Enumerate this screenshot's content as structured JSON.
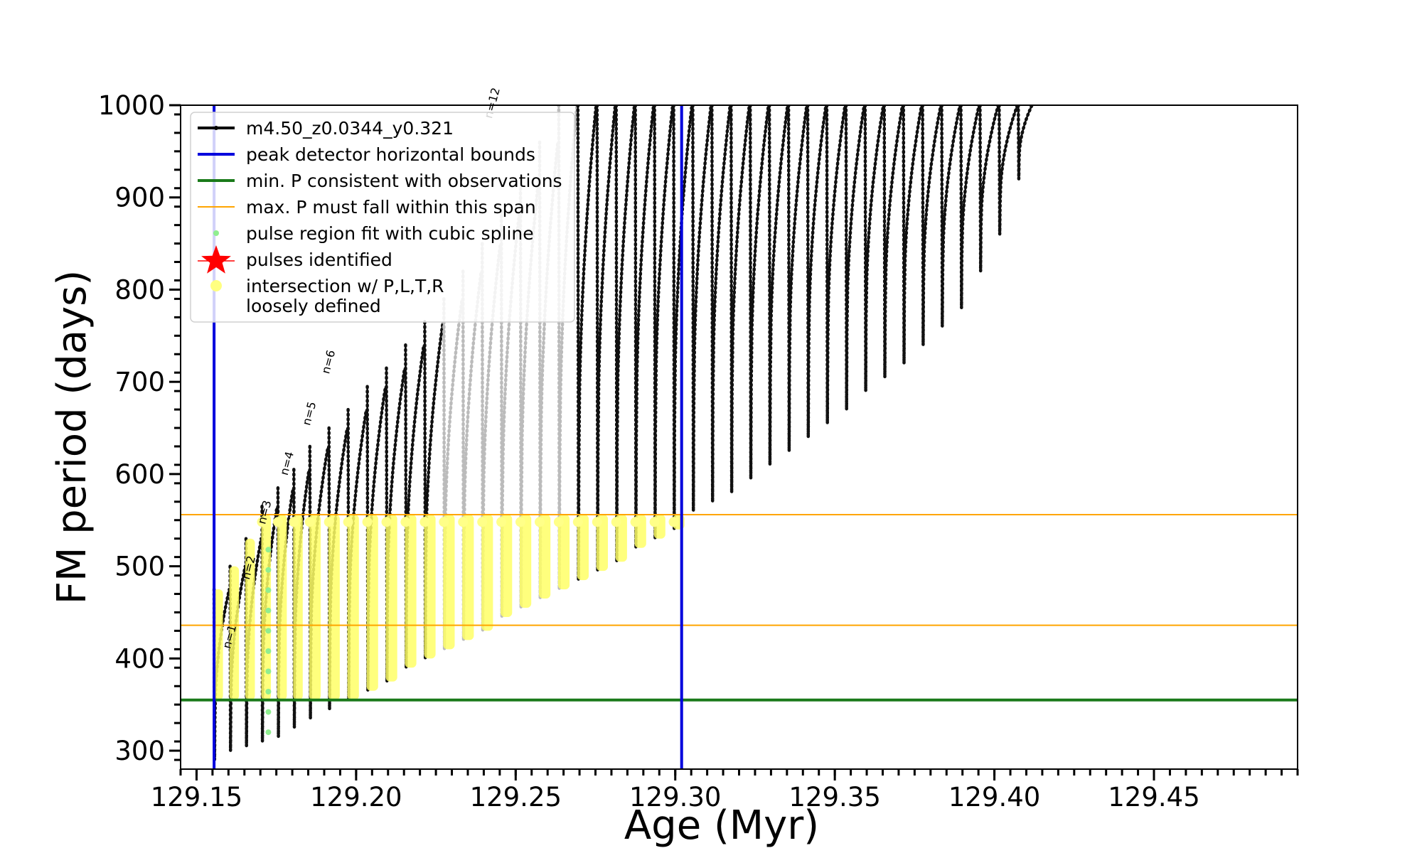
{
  "chart_data": {
    "type": "line",
    "title": "",
    "xlabel": "Age (Myr)",
    "ylabel": "FM period (days)",
    "xlim": [
      129.145,
      129.495
    ],
    "ylim": [
      280,
      1000
    ],
    "x_ticks": [
      129.15,
      129.2,
      129.25,
      129.3,
      129.35,
      129.4,
      129.45
    ],
    "x_tick_labels": [
      "129.15",
      "129.20",
      "129.25",
      "129.30",
      "129.35",
      "129.40",
      "129.45"
    ],
    "y_ticks": [
      300,
      400,
      500,
      600,
      700,
      800,
      900,
      1000
    ],
    "y_tick_labels": [
      "300",
      "400",
      "500",
      "600",
      "700",
      "800",
      "900",
      "1000"
    ],
    "grid": false,
    "legend_position": "top-left",
    "legend": [
      {
        "label": "m4.50_z0.0344_y0.321",
        "style": "line-marker",
        "color": "#000000"
      },
      {
        "label": "peak detector horizontal bounds",
        "style": "line",
        "color": "#0000dd"
      },
      {
        "label": "min. P consistent with observations",
        "style": "line",
        "color": "#1a7a1a"
      },
      {
        "label": "max. P must fall within this span",
        "style": "line",
        "color": "#ffa500"
      },
      {
        "label": "pulse region fit with cubic spline",
        "style": "dot",
        "color": "#90ee90"
      },
      {
        "label": "pulses identified",
        "style": "star",
        "color": "#ff0000"
      },
      {
        "label": "intersection w/ P,L,T,R\nloosely defined",
        "style": "dot",
        "color": "#ffff80"
      }
    ],
    "vertical_lines": [
      {
        "x": 129.1555,
        "color": "#0000dd",
        "role": "peak detector horizontal bounds"
      },
      {
        "x": 129.302,
        "color": "#0000dd",
        "role": "peak detector horizontal bounds"
      }
    ],
    "horizontal_lines": [
      {
        "y": 355,
        "color": "#1a7a1a",
        "role": "min. P consistent with observations"
      },
      {
        "y": 436,
        "color": "#ffa500",
        "role": "max. P span lower"
      },
      {
        "y": 556,
        "color": "#ffa500",
        "role": "max. P span upper"
      }
    ],
    "pulse_labels": [
      {
        "text": "n=1",
        "x": 129.1605,
        "y": 410
      },
      {
        "text": "n=2",
        "x": 129.1665,
        "y": 485
      },
      {
        "text": "n=3",
        "x": 129.1715,
        "y": 545
      },
      {
        "text": "n=4",
        "x": 129.1785,
        "y": 598
      },
      {
        "text": "n=5",
        "x": 129.1855,
        "y": 652
      },
      {
        "text": "n=6",
        "x": 129.1915,
        "y": 708
      },
      {
        "text": "n=12",
        "x": 129.2425,
        "y": 985
      }
    ],
    "series": [
      {
        "name": "m4.50_z0.0344_y0.321",
        "color": "#000000",
        "pulse_starts": [
          129.1555,
          129.1605,
          129.1655,
          129.1705,
          129.1755,
          129.1805,
          129.1855,
          129.1915,
          129.1975,
          129.2035,
          129.2095,
          129.2155,
          129.2215,
          129.2275,
          129.2335,
          129.2395,
          129.2455,
          129.2515,
          129.2575,
          129.2635,
          129.2695,
          129.2755,
          129.2815,
          129.2875,
          129.2935,
          129.2995,
          129.3055,
          129.3115,
          129.3175,
          129.3235,
          129.3295,
          129.3355,
          129.3415,
          129.3475,
          129.3535,
          129.3595,
          129.3655,
          129.3715,
          129.3775,
          129.3835,
          129.3895,
          129.3955,
          129.4015,
          129.4075
        ],
        "pulse_min_p": [
          290,
          300,
          305,
          310,
          315,
          325,
          335,
          345,
          355,
          365,
          375,
          390,
          400,
          410,
          420,
          430,
          445,
          455,
          465,
          475,
          485,
          495,
          505,
          520,
          530,
          540,
          560,
          570,
          580,
          595,
          610,
          625,
          640,
          655,
          670,
          690,
          705,
          720,
          740,
          760,
          780,
          820,
          860,
          920
        ],
        "pulse_peak_p": [
          475,
          500,
          530,
          565,
          585,
          605,
          630,
          650,
          670,
          695,
          715,
          740,
          765,
          790,
          820,
          850,
          885,
          920,
          960,
          1000,
          1000,
          1000,
          1000,
          1000,
          1000,
          1000,
          1000,
          1000,
          1000,
          1000,
          1000,
          1000,
          1000,
          1000,
          1000,
          1000,
          1000,
          1000,
          1000,
          1000,
          1000,
          1000,
          1000,
          1000
        ]
      }
    ],
    "grey_pulses": [
      129.2275,
      129.2335,
      129.2395,
      129.2455,
      129.2515,
      129.2575,
      129.2635
    ]
  }
}
